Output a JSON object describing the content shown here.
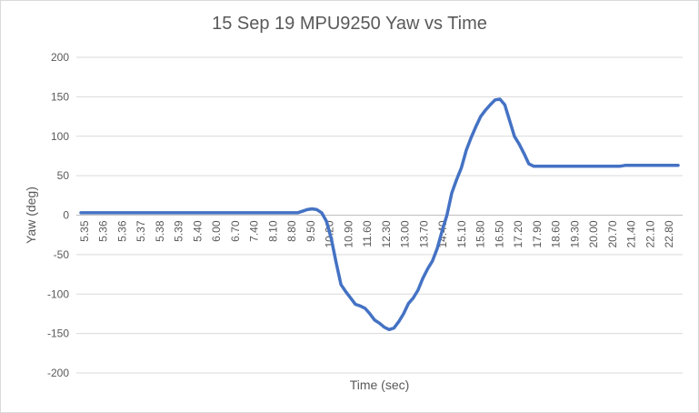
{
  "chart_data": {
    "type": "line",
    "title": "15 Sep 19 MPU9250 Yaw vs Time",
    "xlabel": "Time (sec)",
    "ylabel": "Yaw (deg)",
    "ylim": [
      -200,
      200
    ],
    "yticks": [
      -200,
      -150,
      -100,
      -50,
      0,
      50,
      100,
      150,
      200
    ],
    "grid": true,
    "legend": "none",
    "line_color": "#4472c4",
    "grid_color": "#d9d9d9",
    "tick_labels": [
      "5.35",
      "5.36",
      "5.36",
      "5.37",
      "5.38",
      "5.39",
      "5.40",
      "6.00",
      "6.70",
      "7.40",
      "8.10",
      "8.80",
      "9.50",
      "10.20",
      "10.90",
      "11.60",
      "12.30",
      "13.00",
      "13.70",
      "14.40",
      "15.10",
      "15.80",
      "16.50",
      "17.20",
      "17.90",
      "18.60",
      "19.30",
      "20.00",
      "20.70",
      "21.40",
      "22.10",
      "22.80"
    ],
    "series": [
      {
        "values": [
          3,
          3,
          3,
          3,
          3,
          3,
          3,
          3,
          3,
          3,
          3,
          3,
          3,
          3,
          3,
          3,
          3,
          3,
          3,
          3,
          3,
          3,
          3,
          3,
          3,
          3,
          3,
          3,
          3,
          3,
          3,
          3,
          3,
          3,
          3,
          3,
          3,
          3,
          3,
          3,
          3,
          3,
          3,
          3,
          3,
          3,
          5,
          7,
          8,
          7,
          3,
          -8,
          -30,
          -60,
          -88,
          -97,
          -105,
          -113,
          -115,
          -118,
          -125,
          -133,
          -137,
          -142,
          -145,
          -143,
          -135,
          -125,
          -112,
          -105,
          -95,
          -80,
          -68,
          -58,
          -42,
          -20,
          0,
          28,
          45,
          60,
          82,
          98,
          112,
          125,
          133,
          140,
          146,
          147,
          140,
          120,
          100,
          90,
          78,
          65,
          62,
          62,
          62,
          62,
          62,
          62,
          62,
          62,
          62,
          62,
          62,
          62,
          62,
          62,
          62,
          62,
          62,
          62,
          62,
          63,
          63,
          63,
          63,
          63,
          63,
          63,
          63,
          63,
          63,
          63,
          63
        ]
      }
    ]
  }
}
